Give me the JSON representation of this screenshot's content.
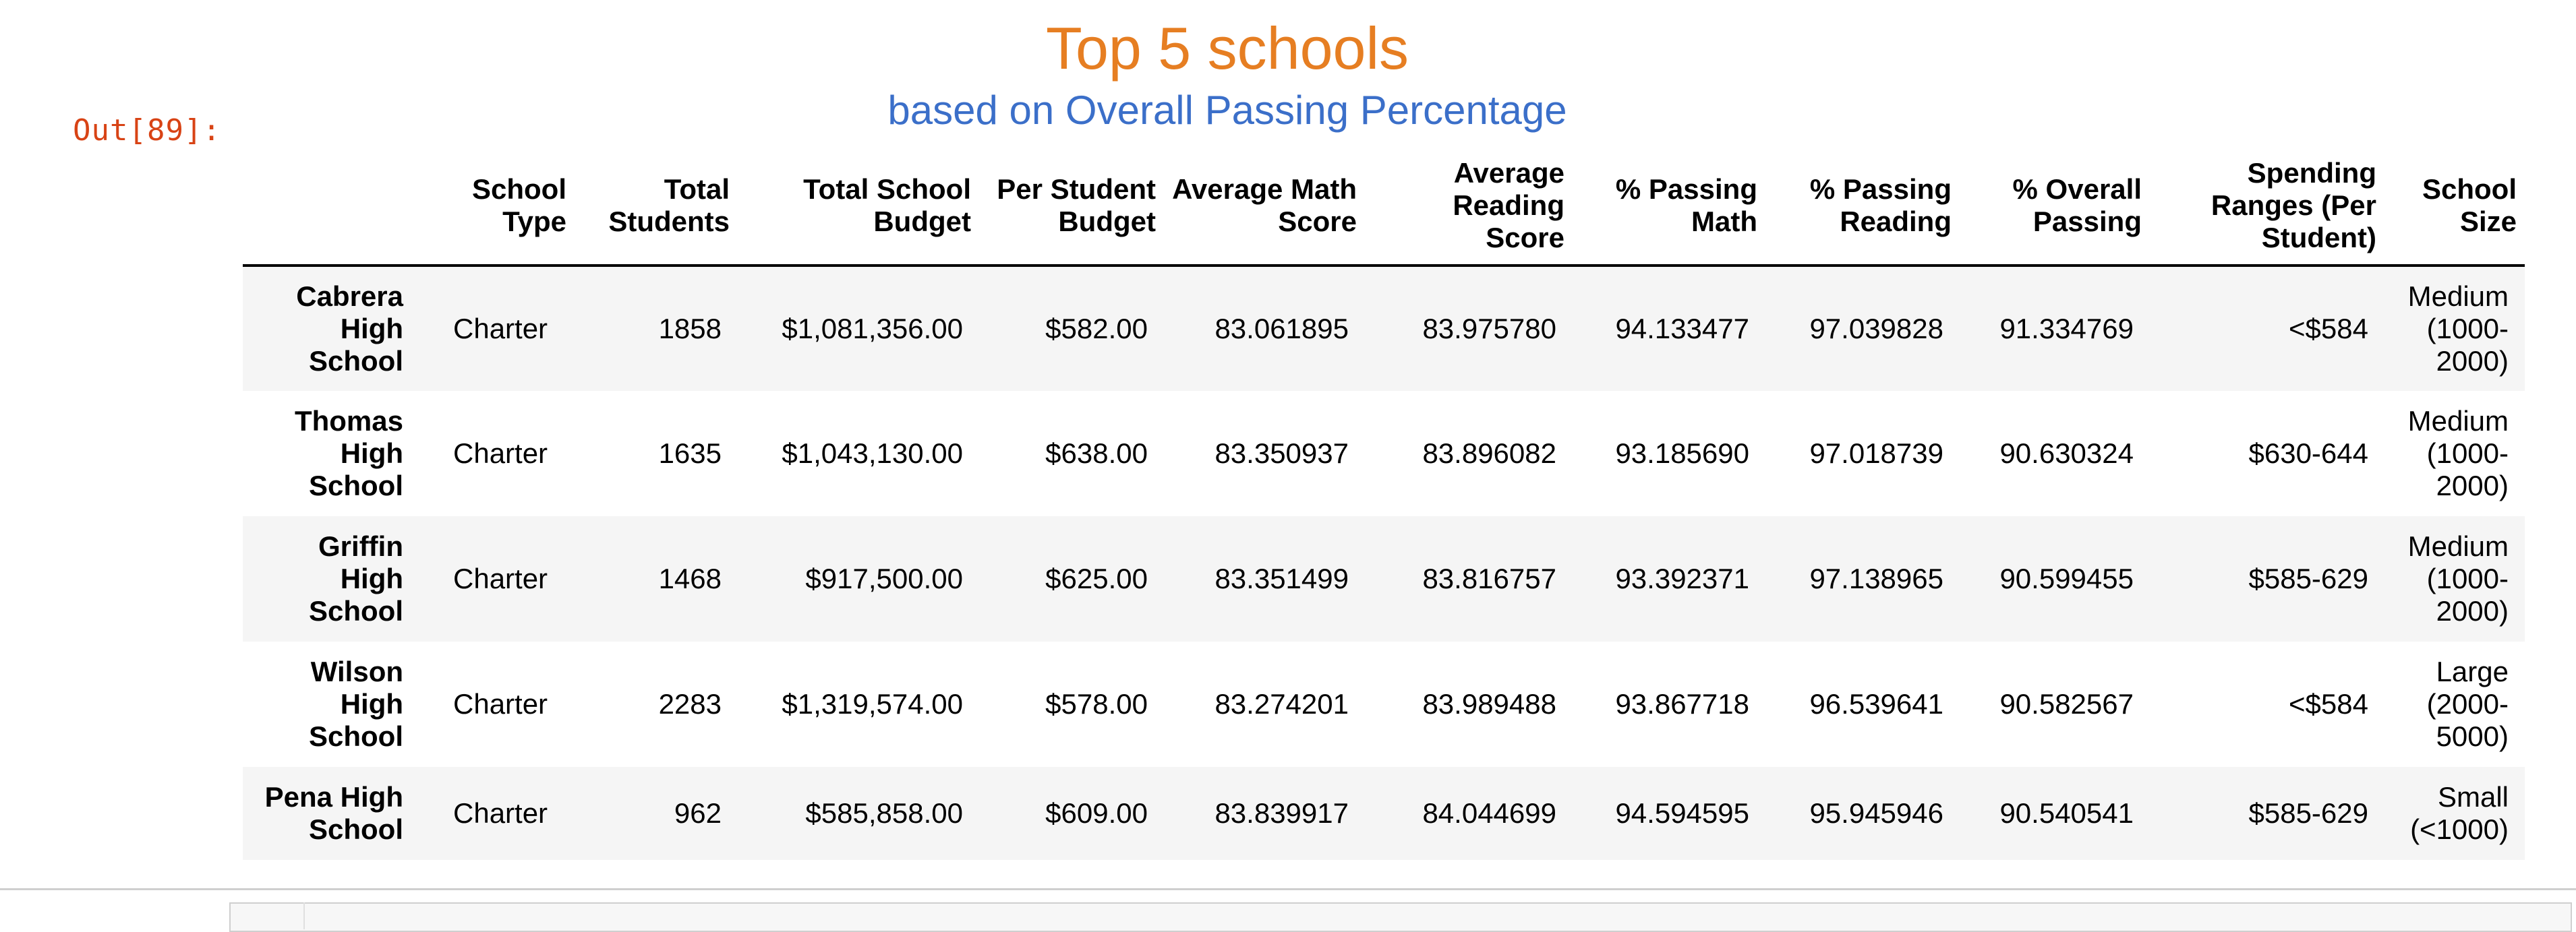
{
  "output_prompt": "Out[89]:",
  "caption": {
    "title": "Top 5 schools",
    "subtitle": "based on Overall Passing Percentage",
    "title_color": "#e67e22",
    "subtitle_color": "#3b6fc9"
  },
  "table": {
    "columns": [
      "",
      "School Type",
      "Total Students",
      "Total School Budget",
      "Per Student Budget",
      "Average Math Score",
      "Average Reading Score",
      "% Passing Math",
      "% Passing Reading",
      "% Overall Passing",
      "Spending Ranges (Per Student)",
      "School Size"
    ],
    "rows": [
      {
        "school": "Cabrera High School",
        "type": "Charter",
        "students": "1858",
        "budget": "$1,081,356.00",
        "per_student": "$582.00",
        "avg_math": "83.061895",
        "avg_reading": "83.975780",
        "pass_math": "94.133477",
        "pass_reading": "97.039828",
        "overall": "91.334769",
        "spending": "<$584",
        "size": "Medium (1000-2000)"
      },
      {
        "school": "Thomas High School",
        "type": "Charter",
        "students": "1635",
        "budget": "$1,043,130.00",
        "per_student": "$638.00",
        "avg_math": "83.350937",
        "avg_reading": "83.896082",
        "pass_math": "93.185690",
        "pass_reading": "97.018739",
        "overall": "90.630324",
        "spending": "$630-644",
        "size": "Medium (1000-2000)"
      },
      {
        "school": "Griffin High School",
        "type": "Charter",
        "students": "1468",
        "budget": "$917,500.00",
        "per_student": "$625.00",
        "avg_math": "83.351499",
        "avg_reading": "83.816757",
        "pass_math": "93.392371",
        "pass_reading": "97.138965",
        "overall": "90.599455",
        "spending": "$585-629",
        "size": "Medium (1000-2000)"
      },
      {
        "school": "Wilson High School",
        "type": "Charter",
        "students": "2283",
        "budget": "$1,319,574.00",
        "per_student": "$578.00",
        "avg_math": "83.274201",
        "avg_reading": "83.989488",
        "pass_math": "93.867718",
        "pass_reading": "96.539641",
        "overall": "90.582567",
        "spending": "<$584",
        "size": "Large (2000-5000)"
      },
      {
        "school": "Pena High School",
        "type": "Charter",
        "students": "962",
        "budget": "$585,858.00",
        "per_student": "$609.00",
        "avg_math": "83.839917",
        "avg_reading": "84.044699",
        "pass_math": "94.594595",
        "pass_reading": "95.945946",
        "overall": "90.540541",
        "spending": "$585-629",
        "size": "Small (<1000)"
      }
    ]
  }
}
